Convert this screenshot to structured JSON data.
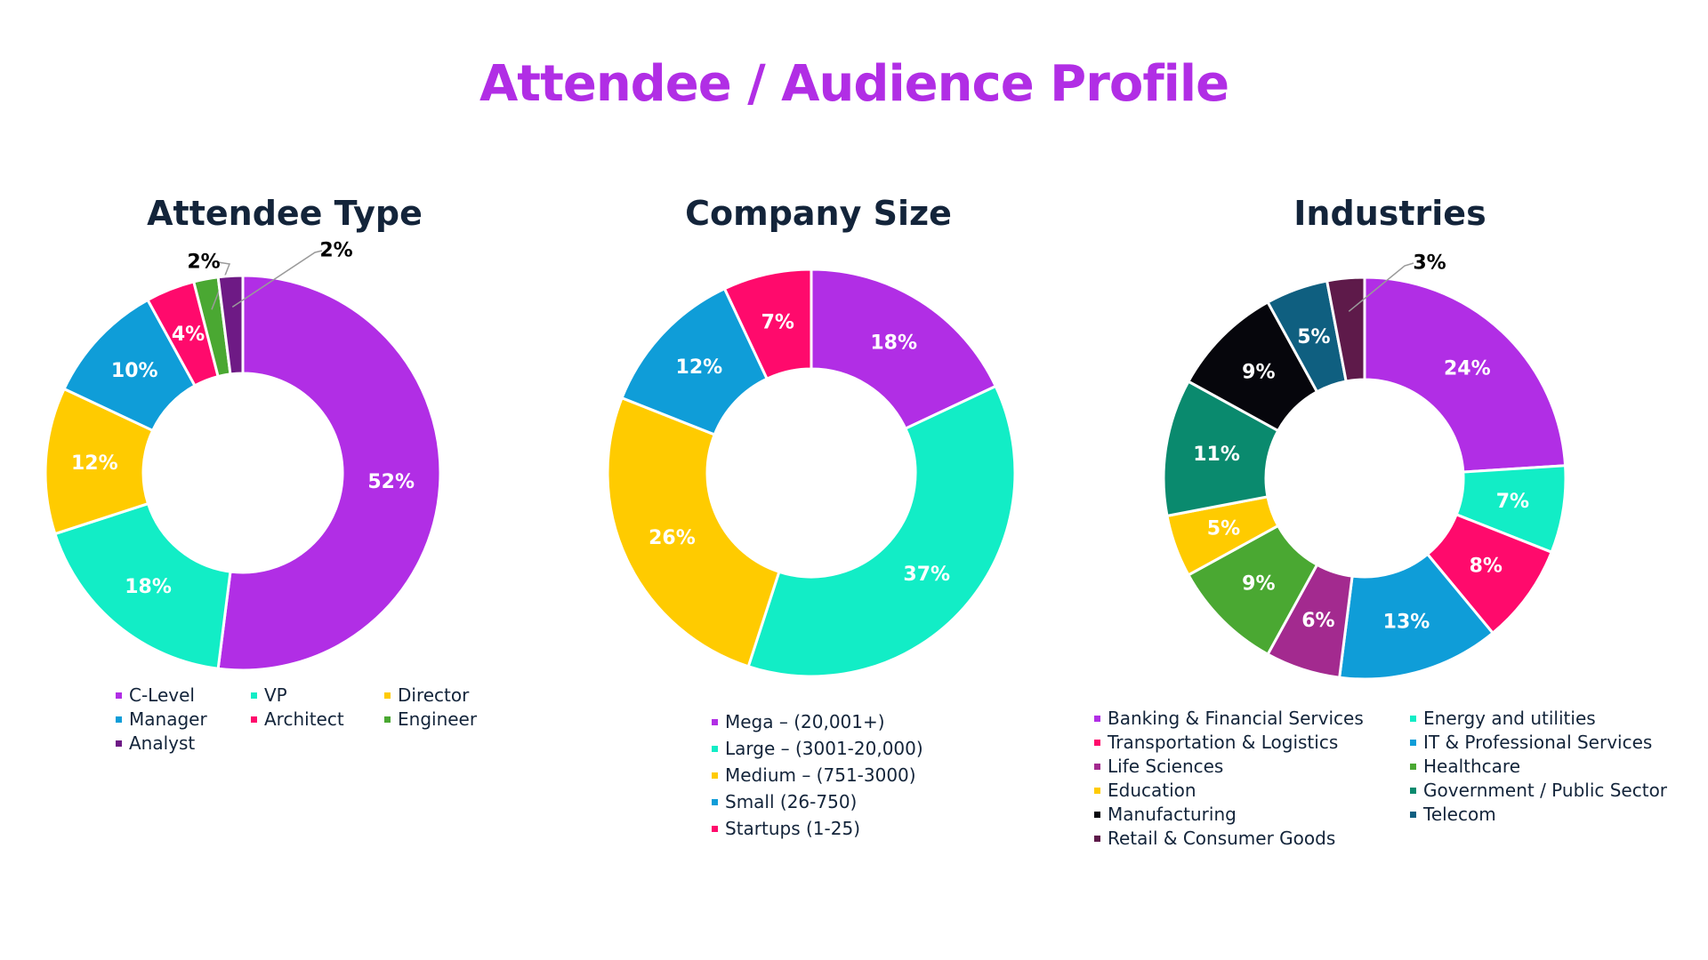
{
  "title": "Attendee / Audience Profile",
  "chart_data": [
    {
      "type": "pie",
      "title": "Attendee Type",
      "categories": [
        "C-Level",
        "VP",
        "Director",
        "Manager",
        "Architect",
        "Engineer",
        "Analyst"
      ],
      "values": [
        52,
        18,
        12,
        10,
        4,
        2,
        2
      ],
      "labels": [
        "52%",
        "18%",
        "12%",
        "10%",
        "4%",
        "2%",
        "2%"
      ],
      "colors": [
        "#b12ee5",
        "#12edc6",
        "#ffcb00",
        "#0f9dd8",
        "#ff0a6c",
        "#4aa832",
        "#6e1a85"
      ],
      "legend": "bottom"
    },
    {
      "type": "pie",
      "title": "Company Size",
      "categories": [
        "Mega – (20,001+)",
        "Large – (3001-20,000)",
        "Medium – (751-3000)",
        "Small (26-750)",
        "Startups (1-25)"
      ],
      "values": [
        18,
        37,
        26,
        12,
        7
      ],
      "labels": [
        "18%",
        "37%",
        "26%",
        "12%",
        "7%"
      ],
      "colors": [
        "#b12ee5",
        "#12edc6",
        "#ffcb00",
        "#0f9dd8",
        "#ff0a6c"
      ],
      "legend": "bottom"
    },
    {
      "type": "pie",
      "title": "Industries",
      "categories": [
        "Banking & Financial Services",
        "Energy and utilities",
        "Transportation & Logistics",
        "IT & Professional Services",
        "Life Sciences",
        "Healthcare",
        "Education",
        "Government / Public Sector",
        "Manufacturing",
        "Telecom",
        "Retail & Consumer Goods"
      ],
      "values": [
        24,
        7,
        8,
        13,
        6,
        9,
        5,
        11,
        9,
        5,
        3
      ],
      "labels": [
        "24%",
        "7%",
        "8%",
        "13%",
        "6%",
        "9%",
        "5%",
        "11%",
        "9%",
        "5%",
        "3%"
      ],
      "colors": [
        "#b12ee5",
        "#12edc6",
        "#ff0a6c",
        "#0f9dd8",
        "#a32a8f",
        "#4aa832",
        "#ffcb00",
        "#0a8a6e",
        "#06060c",
        "#0f5f80",
        "#5e1a4a"
      ],
      "legend": "bottom"
    }
  ]
}
